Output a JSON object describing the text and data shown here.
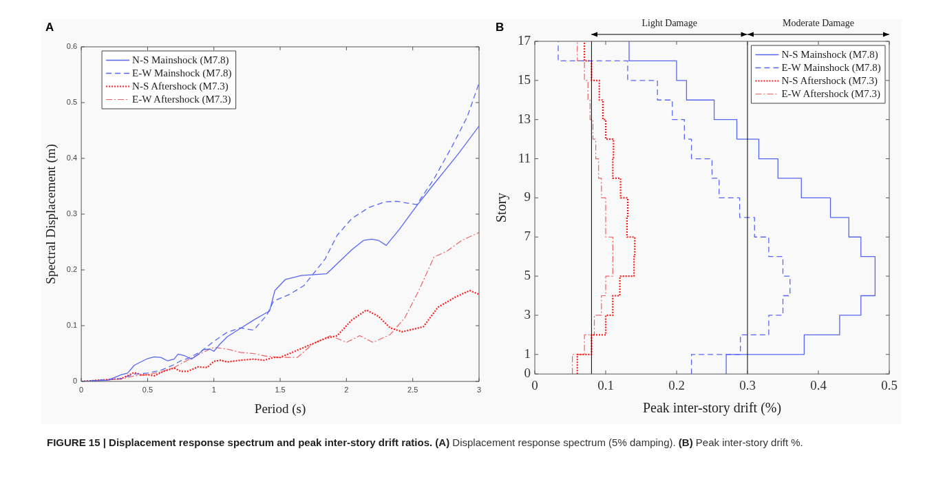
{
  "chart_data": [
    {
      "type": "line",
      "xlabel": "Period (s)",
      "ylabel": "Spectral Displacement (m)",
      "xlim": [
        0,
        3
      ],
      "ylim": [
        0,
        0.6
      ],
      "xticks": [
        0,
        0.5,
        1,
        1.5,
        2,
        2.5,
        3
      ],
      "yticks": [
        0,
        0.1,
        0.2,
        0.3,
        0.4,
        0.5,
        0.6
      ],
      "legend": "top left",
      "annotations": [
        "A",
        "FIGURE 15 | Displacement response spectrum and peak inter-story drift ratios.",
        "(A)",
        "Displacement response spectrum (5% damping).",
        "(B)",
        "Peak inter-story drift %."
      ],
      "series": [
        {
          "name": "N-S Mainshock (M7.8)",
          "color": "#5566f5",
          "line_style": "solid",
          "x": [
            0,
            0.2,
            0.3,
            0.35,
            0.4,
            0.5,
            0.55,
            0.6,
            0.65,
            0.7,
            0.73,
            0.78,
            0.83,
            0.88,
            0.92,
            0.97,
            1.0,
            1.05,
            1.1,
            1.2,
            1.3,
            1.38,
            1.42,
            1.46,
            1.54,
            1.66,
            1.85,
            1.93,
            2.04,
            2.13,
            2.19,
            2.24,
            2.3,
            2.4,
            2.53,
            2.66,
            2.84,
            3.0
          ],
          "values": [
            0,
            0.002,
            0.012,
            0.015,
            0.029,
            0.041,
            0.044,
            0.043,
            0.037,
            0.04,
            0.049,
            0.046,
            0.04,
            0.048,
            0.057,
            0.058,
            0.054,
            0.068,
            0.08,
            0.095,
            0.11,
            0.121,
            0.126,
            0.163,
            0.183,
            0.19,
            0.193,
            0.211,
            0.236,
            0.253,
            0.255,
            0.253,
            0.244,
            0.273,
            0.315,
            0.354,
            0.407,
            0.458
          ]
        },
        {
          "name": "E-W Mainshock (M7.8)",
          "color": "#5566f5",
          "line_style": "dashed",
          "x": [
            0,
            0.3,
            0.4,
            0.5,
            0.6,
            0.7,
            0.75,
            0.8,
            0.9,
            1.0,
            1.1,
            1.2,
            1.3,
            1.4,
            1.45,
            1.57,
            1.68,
            1.75,
            1.84,
            1.93,
            2.04,
            2.17,
            2.29,
            2.38,
            2.53,
            2.66,
            2.8,
            2.91,
            3.0
          ],
          "values": [
            0,
            0.005,
            0.013,
            0.015,
            0.02,
            0.03,
            0.037,
            0.041,
            0.053,
            0.072,
            0.088,
            0.096,
            0.092,
            0.119,
            0.144,
            0.156,
            0.172,
            0.193,
            0.22,
            0.262,
            0.292,
            0.312,
            0.322,
            0.323,
            0.317,
            0.363,
            0.423,
            0.474,
            0.535
          ]
        },
        {
          "name": "N-S Aftershock (M7.3)",
          "color": "#ff1a1a",
          "line_style": "dotted",
          "x": [
            0,
            0.3,
            0.4,
            0.45,
            0.5,
            0.55,
            0.62,
            0.7,
            0.75,
            0.8,
            0.88,
            0.95,
            1.0,
            1.05,
            1.1,
            1.2,
            1.3,
            1.38,
            1.45,
            1.5,
            1.66,
            1.84,
            1.93,
            2.04,
            2.15,
            2.24,
            2.33,
            2.42,
            2.51,
            2.58,
            2.69,
            2.82,
            2.93,
            3.0
          ],
          "values": [
            0,
            0.005,
            0.016,
            0.012,
            0.012,
            0.01,
            0.018,
            0.024,
            0.018,
            0.018,
            0.026,
            0.025,
            0.036,
            0.038,
            0.035,
            0.038,
            0.04,
            0.038,
            0.043,
            0.043,
            0.059,
            0.077,
            0.082,
            0.11,
            0.128,
            0.117,
            0.096,
            0.089,
            0.094,
            0.098,
            0.133,
            0.151,
            0.163,
            0.156
          ]
        },
        {
          "name": "E-W Aftershock (M7.3)",
          "color": "#f06060",
          "line_style": "dashdot",
          "x": [
            0,
            0.3,
            0.4,
            0.5,
            0.6,
            0.7,
            0.8,
            0.9,
            1.0,
            1.1,
            1.2,
            1.3,
            1.4,
            1.5,
            1.63,
            1.75,
            1.88,
            2.0,
            2.1,
            2.2,
            2.33,
            2.44,
            2.55,
            2.66,
            2.76,
            2.87,
            3.0
          ],
          "values": [
            0,
            0.004,
            0.01,
            0.012,
            0.017,
            0.025,
            0.038,
            0.05,
            0.061,
            0.058,
            0.052,
            0.05,
            0.045,
            0.043,
            0.043,
            0.068,
            0.082,
            0.07,
            0.082,
            0.07,
            0.084,
            0.114,
            0.165,
            0.223,
            0.234,
            0.253,
            0.267
          ]
        }
      ]
    },
    {
      "type": "step",
      "orientation": "horizontal",
      "xlabel": "Peak inter-story drift (%)",
      "ylabel": "Story",
      "xlim": [
        0,
        0.5
      ],
      "ylim": [
        0,
        17
      ],
      "xticks": [
        0,
        0.1,
        0.2,
        0.3,
        0.4,
        0.5
      ],
      "yticks": [
        0,
        1,
        3,
        5,
        7,
        9,
        11,
        13,
        15,
        17
      ],
      "legend": "top right",
      "annotations": [
        "B",
        "Light Damage",
        "Moderate Damage"
      ],
      "ref_lines": [
        {
          "axis": "x",
          "value": 0.08,
          "color": "#000000"
        },
        {
          "axis": "x",
          "value": 0.3,
          "color": "#000000"
        }
      ],
      "x": [
        0,
        1,
        2,
        3,
        4,
        5,
        6,
        7,
        8,
        9,
        10,
        11,
        12,
        13,
        14,
        15,
        16,
        17
      ],
      "series": [
        {
          "name": "N-S Mainshock (M7.8)",
          "color": "#5566f5",
          "line_style": "solid",
          "values": [
            0.27,
            0.38,
            0.43,
            0.46,
            0.48,
            0.48,
            0.46,
            0.443,
            0.417,
            0.376,
            0.343,
            0.316,
            0.285,
            0.253,
            0.214,
            0.2,
            0.133,
            0.133
          ]
        },
        {
          "name": "E-W Mainshock (M7.8)",
          "color": "#5566f5",
          "line_style": "dashed",
          "values": [
            0.221,
            0.29,
            0.33,
            0.35,
            0.36,
            0.35,
            0.33,
            0.31,
            0.289,
            0.26,
            0.25,
            0.221,
            0.211,
            0.194,
            0.173,
            0.131,
            0.033,
            0.033
          ]
        },
        {
          "name": "N-S Aftershock (M7.3)",
          "color": "#ff1a1a",
          "line_style": "dotted",
          "values": [
            0.06,
            0.08,
            0.1,
            0.11,
            0.12,
            0.14,
            0.141,
            0.13,
            0.131,
            0.121,
            0.11,
            0.111,
            0.1,
            0.096,
            0.091,
            0.08,
            0.07,
            0.07
          ]
        },
        {
          "name": "E-W Aftershock (M7.3)",
          "color": "#f06060",
          "line_style": "dashdot",
          "values": [
            0.053,
            0.07,
            0.084,
            0.094,
            0.1,
            0.11,
            0.11,
            0.1,
            0.1,
            0.094,
            0.09,
            0.086,
            0.082,
            0.078,
            0.075,
            0.07,
            0.06,
            0.06
          ]
        }
      ]
    }
  ]
}
